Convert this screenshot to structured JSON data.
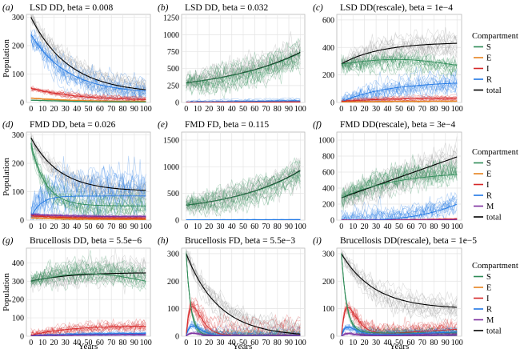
{
  "figure": {
    "xlabel": "Years",
    "ylabel": "Population",
    "legend_title": "Compartment"
  },
  "colors": {
    "S": "#2e8b57",
    "E": "#e6821e",
    "I": "#d62728",
    "R": "#1f77e4",
    "M": "#7b2d9e",
    "total": "#000000",
    "total_runs": "#9a9a9a",
    "grid": "#e4e4e4",
    "panel_border": "#b8b8b8"
  },
  "chart_data": [
    {
      "type": "line",
      "label": "(a)",
      "title": "LSD DD, beta = 0.008",
      "xlim": [
        0,
        100
      ],
      "ylim": [
        0,
        310
      ],
      "yticks": [
        0,
        100,
        200,
        300
      ],
      "xticks": [
        0,
        10,
        20,
        30,
        40,
        50,
        60,
        70,
        80,
        90,
        100
      ],
      "series": [
        {
          "name": "total",
          "start": 300,
          "end": 45,
          "shape": "decay",
          "k": 3.0,
          "spread": 45
        },
        {
          "name": "R",
          "start": 240,
          "end": 40,
          "shape": "decay",
          "k": 3.2,
          "spread": 60
        },
        {
          "name": "I",
          "start": 50,
          "end": 10,
          "shape": "decay",
          "k": 2.5,
          "spread": 15
        },
        {
          "name": "E",
          "start": 15,
          "end": 3,
          "shape": "decay",
          "k": 2.5,
          "spread": 5
        },
        {
          "name": "S",
          "start": 8,
          "end": 2,
          "shape": "decay",
          "k": 2,
          "spread": 3
        }
      ]
    },
    {
      "type": "line",
      "label": "(b)",
      "title": "LSD DD, beta = 0.032",
      "xlim": [
        0,
        100
      ],
      "ylim": [
        0,
        1300
      ],
      "yticks": [
        0,
        250,
        500,
        750,
        1000,
        1250
      ],
      "xticks": [
        0,
        10,
        20,
        30,
        40,
        50,
        60,
        70,
        80,
        90,
        100
      ],
      "series": [
        {
          "name": "total",
          "start": 290,
          "end": 740,
          "shape": "growth",
          "k": 1.4,
          "spread": 260
        },
        {
          "name": "S",
          "start": 290,
          "end": 730,
          "shape": "growth",
          "k": 1.4,
          "spread": 270
        },
        {
          "name": "R",
          "start": 5,
          "end": 25,
          "shape": "lin",
          "k": 1,
          "spread": 35
        },
        {
          "name": "I",
          "start": 3,
          "end": 8,
          "shape": "lin",
          "k": 1,
          "spread": 10
        }
      ]
    },
    {
      "type": "line",
      "label": "(c)",
      "title": "LSD DD(rescale), beta = 1e−4",
      "xlim": [
        0,
        100
      ],
      "ylim": [
        0,
        640
      ],
      "yticks": [
        0,
        200,
        400,
        600
      ],
      "xticks": [
        0,
        10,
        20,
        30,
        40,
        50,
        60,
        70,
        80,
        90,
        100
      ],
      "series": [
        {
          "name": "total",
          "start": 280,
          "end": 430,
          "shape": "sat",
          "k": 3,
          "spread": 120
        },
        {
          "name": "S",
          "start": 280,
          "end": 270,
          "shape": "hump",
          "k": 3,
          "spread": 110
        },
        {
          "name": "R",
          "start": 5,
          "end": 140,
          "shape": "sat",
          "k": 2.5,
          "spread": 110
        },
        {
          "name": "I",
          "start": 8,
          "end": 30,
          "shape": "sat",
          "k": 2.5,
          "spread": 25
        },
        {
          "name": "E",
          "start": 3,
          "end": 10,
          "shape": "sat",
          "k": 2.5,
          "spread": 8
        }
      ]
    },
    {
      "type": "line",
      "label": "(d)",
      "title": "FMD DD, beta = 0.026",
      "xlim": [
        0,
        100
      ],
      "ylim": [
        0,
        310
      ],
      "yticks": [
        0,
        100,
        200,
        300
      ],
      "xticks": [
        0,
        10,
        20,
        30,
        40,
        50,
        60,
        70,
        80,
        90,
        100
      ],
      "series": [
        {
          "name": "total",
          "start": 290,
          "end": 105,
          "shape": "decay",
          "k": 4,
          "spread": 45
        },
        {
          "name": "R",
          "start": 10,
          "end": 75,
          "shape": "spike",
          "k": 5,
          "spread": 110
        },
        {
          "name": "S",
          "start": 270,
          "end": 50,
          "shape": "decay",
          "k": 8,
          "spread": 55
        },
        {
          "name": "M",
          "start": 20,
          "end": 12,
          "shape": "decay",
          "k": 3,
          "spread": 8
        },
        {
          "name": "I",
          "start": 15,
          "end": 6,
          "shape": "decay",
          "k": 3,
          "spread": 10
        },
        {
          "name": "E",
          "start": 8,
          "end": 3,
          "shape": "decay",
          "k": 3,
          "spread": 5
        }
      ]
    },
    {
      "type": "line",
      "label": "(e)",
      "title": "FMD FD, beta = 0.115",
      "xlim": [
        0,
        100
      ],
      "ylim": [
        0,
        1650
      ],
      "yticks": [
        0,
        500,
        1000,
        1500
      ],
      "xticks": [
        0,
        10,
        20,
        30,
        40,
        50,
        60,
        70,
        80,
        90,
        100
      ],
      "series": [
        {
          "name": "total",
          "start": 280,
          "end": 930,
          "shape": "growth",
          "k": 1.6,
          "spread": 300
        },
        {
          "name": "S",
          "start": 280,
          "end": 920,
          "shape": "growth",
          "k": 1.6,
          "spread": 310
        },
        {
          "name": "R",
          "start": 5,
          "end": 10,
          "shape": "lin",
          "k": 1,
          "spread": 10
        }
      ]
    },
    {
      "type": "line",
      "label": "(f)",
      "title": "FMD DD(rescale), beta = 3e−4",
      "xlim": [
        0,
        100
      ],
      "ylim": [
        0,
        1100
      ],
      "yticks": [
        0,
        200,
        400,
        600,
        800,
        1000
      ],
      "xticks": [
        0,
        10,
        20,
        30,
        40,
        50,
        60,
        70,
        80,
        90,
        100
      ],
      "series": [
        {
          "name": "total",
          "start": 280,
          "end": 790,
          "shape": "lin",
          "k": 1,
          "spread": 250
        },
        {
          "name": "S",
          "start": 280,
          "end": 570,
          "shape": "sat",
          "k": 2,
          "spread": 260
        },
        {
          "name": "R",
          "start": 0,
          "end": 200,
          "shape": "late",
          "k": 3,
          "spread": 200
        },
        {
          "name": "I",
          "start": 0,
          "end": 15,
          "shape": "late",
          "k": 3,
          "spread": 15
        },
        {
          "name": "M",
          "start": 0,
          "end": 8,
          "shape": "late",
          "k": 3,
          "spread": 8
        }
      ]
    },
    {
      "type": "line",
      "label": "(g)",
      "title": "Brucellosis DD, beta = 5.5e−6",
      "xlim": [
        0,
        100
      ],
      "ylim": [
        0,
        480
      ],
      "yticks": [
        0,
        100,
        200,
        300,
        400
      ],
      "xticks": [
        0,
        10,
        20,
        30,
        40,
        50,
        60,
        70,
        80,
        90,
        100
      ],
      "series": [
        {
          "name": "total",
          "start": 300,
          "end": 345,
          "shape": "sat",
          "k": 3,
          "spread": 90
        },
        {
          "name": "S",
          "start": 300,
          "end": 300,
          "shape": "hump",
          "k": 3,
          "spread": 80
        },
        {
          "name": "I",
          "start": 5,
          "end": 55,
          "shape": "sat",
          "k": 3,
          "spread": 50
        },
        {
          "name": "R",
          "start": 0,
          "end": 15,
          "shape": "sat",
          "k": 3,
          "spread": 15
        },
        {
          "name": "M",
          "start": 3,
          "end": 8,
          "shape": "sat",
          "k": 3,
          "spread": 6
        }
      ]
    },
    {
      "type": "line",
      "label": "(h)",
      "title": "Brucellosis FD, beta = 5.5e−3",
      "xlim": [
        0,
        100
      ],
      "ylim": [
        0,
        320
      ],
      "yticks": [
        0,
        100,
        200,
        300
      ],
      "xticks": [
        0,
        10,
        20,
        30,
        40,
        50,
        60,
        70,
        80,
        90,
        100
      ],
      "series": [
        {
          "name": "total",
          "start": 300,
          "end": 8,
          "shape": "decay",
          "k": 3.5,
          "spread": 55
        },
        {
          "name": "I",
          "start": 0,
          "end": 5,
          "shape": "pulse",
          "k": 120,
          "spread": 55
        },
        {
          "name": "S",
          "start": 300,
          "end": 2,
          "shape": "crash",
          "k": 25,
          "spread": 25
        },
        {
          "name": "R",
          "start": 0,
          "end": 3,
          "shape": "pulse",
          "k": 40,
          "spread": 25
        },
        {
          "name": "M",
          "start": 0,
          "end": 1,
          "shape": "pulse",
          "k": 12,
          "spread": 8
        }
      ]
    },
    {
      "type": "line",
      "label": "(i)",
      "title": "Brucellosis DD(rescale), beta = 1e−5",
      "xlim": [
        0,
        100
      ],
      "ylim": [
        0,
        320
      ],
      "yticks": [
        0,
        100,
        200,
        300
      ],
      "xticks": [
        0,
        10,
        20,
        30,
        40,
        50,
        60,
        70,
        80,
        90,
        100
      ],
      "series": [
        {
          "name": "total",
          "start": 300,
          "end": 105,
          "shape": "decay",
          "k": 3.5,
          "spread": 50
        },
        {
          "name": "I",
          "start": 0,
          "end": 25,
          "shape": "pulse",
          "k": 115,
          "spread": 50
        },
        {
          "name": "S",
          "start": 300,
          "end": 12,
          "shape": "crash",
          "k": 22,
          "spread": 25
        },
        {
          "name": "R",
          "start": 0,
          "end": 15,
          "shape": "pulse",
          "k": 35,
          "spread": 25
        },
        {
          "name": "M",
          "start": 0,
          "end": 6,
          "shape": "pulse",
          "k": 10,
          "spread": 8
        }
      ]
    }
  ],
  "legends": [
    {
      "row": 0,
      "entries": [
        "S",
        "E",
        "I",
        "R",
        "total"
      ]
    },
    {
      "row": 1,
      "entries": [
        "S",
        "E",
        "I",
        "R",
        "M",
        "total"
      ]
    },
    {
      "row": 2,
      "entries": [
        "S",
        "E",
        "I",
        "R",
        "M",
        "total"
      ]
    }
  ]
}
